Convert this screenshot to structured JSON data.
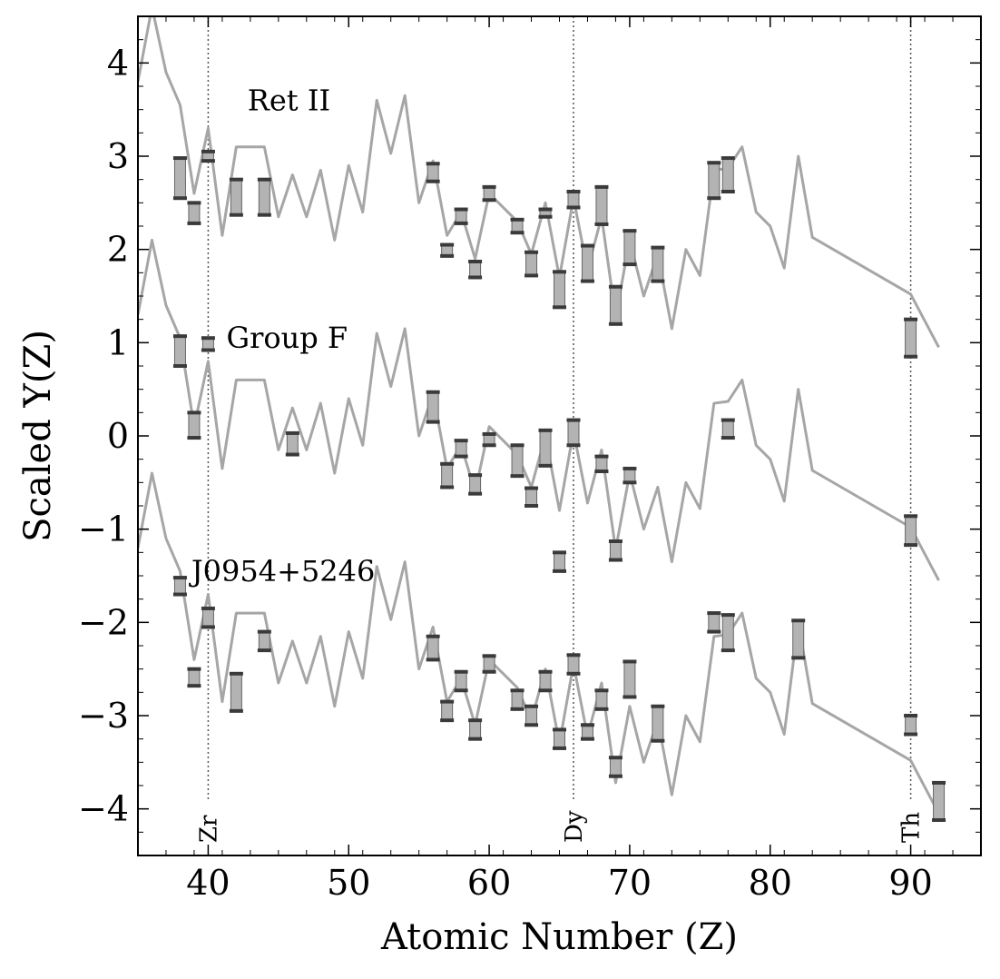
{
  "chart_data": {
    "type": "line",
    "xlabel": "Atomic Number (Z)",
    "ylabel": "Scaled Y(Z)",
    "xlim": [
      35,
      95
    ],
    "ylim": [
      -4.5,
      4.5
    ],
    "x_ticks": [
      40,
      50,
      60,
      70,
      80,
      90
    ],
    "y_ticks": [
      -4,
      -3,
      -2,
      -1,
      0,
      1,
      2,
      3,
      4
    ],
    "x_tick_labels": [
      "40",
      "50",
      "60",
      "70",
      "80",
      "90"
    ],
    "y_tick_labels": [
      "−4",
      "−3",
      "−2",
      "−1",
      "0",
      "1",
      "2",
      "3",
      "4"
    ],
    "grid": false,
    "line_color": "#a6a6a6",
    "bar_fill": "#b3b3b3",
    "bar_cap_color": "#3a3a3a",
    "vertical_lines": [
      {
        "x": 40,
        "label": "Zr"
      },
      {
        "x": 66,
        "label": "Dy"
      },
      {
        "x": 90,
        "label": "Th"
      }
    ],
    "model_curve": {
      "x": [
        35,
        36,
        37,
        38,
        39,
        40,
        41,
        42,
        44,
        45,
        46,
        47,
        48,
        49,
        50,
        51,
        52,
        53,
        54,
        55,
        56,
        57,
        58,
        59,
        60,
        62,
        63,
        64,
        65,
        66,
        67,
        68,
        69,
        70,
        71,
        72,
        73,
        74,
        75,
        76,
        77,
        78,
        79,
        80,
        81,
        82,
        83,
        90,
        92
      ],
      "y": [
        3.8,
        4.6,
        3.9,
        3.55,
        2.6,
        3.3,
        2.15,
        3.1,
        3.1,
        2.35,
        2.8,
        2.35,
        2.85,
        2.1,
        2.9,
        2.4,
        3.6,
        3.03,
        3.65,
        2.5,
        2.95,
        2.15,
        2.4,
        1.9,
        2.6,
        2.3,
        1.95,
        2.5,
        1.7,
        2.55,
        1.78,
        2.35,
        1.28,
        2.1,
        1.5,
        1.95,
        1.15,
        2.0,
        1.72,
        2.85,
        2.87,
        3.1,
        2.4,
        2.25,
        1.8,
        3.0,
        2.13,
        1.52,
        0.95
      ]
    },
    "series": [
      {
        "name": "Ret II",
        "offset": 0.0,
        "label_pos": [
          42.8,
          3.6
        ],
        "points": [
          {
            "z": 38,
            "lo": 2.55,
            "hi": 2.98
          },
          {
            "z": 39,
            "lo": 2.28,
            "hi": 2.5
          },
          {
            "z": 40,
            "lo": 2.95,
            "hi": 3.05
          },
          {
            "z": 42,
            "lo": 2.37,
            "hi": 2.75
          },
          {
            "z": 44,
            "lo": 2.37,
            "hi": 2.75
          },
          {
            "z": 56,
            "lo": 2.73,
            "hi": 2.92
          },
          {
            "z": 57,
            "lo": 1.93,
            "hi": 2.05
          },
          {
            "z": 58,
            "lo": 2.28,
            "hi": 2.43
          },
          {
            "z": 59,
            "lo": 1.7,
            "hi": 1.87
          },
          {
            "z": 60,
            "lo": 2.53,
            "hi": 2.67
          },
          {
            "z": 62,
            "lo": 2.18,
            "hi": 2.32
          },
          {
            "z": 63,
            "lo": 1.72,
            "hi": 1.97
          },
          {
            "z": 64,
            "lo": 2.35,
            "hi": 2.43
          },
          {
            "z": 65,
            "lo": 1.38,
            "hi": 1.76
          },
          {
            "z": 66,
            "lo": 2.45,
            "hi": 2.62
          },
          {
            "z": 67,
            "lo": 1.66,
            "hi": 2.04
          },
          {
            "z": 68,
            "lo": 2.27,
            "hi": 2.67
          },
          {
            "z": 69,
            "lo": 1.2,
            "hi": 1.6
          },
          {
            "z": 70,
            "lo": 1.84,
            "hi": 2.2
          },
          {
            "z": 72,
            "lo": 1.66,
            "hi": 2.02
          },
          {
            "z": 76,
            "lo": 2.55,
            "hi": 2.93
          },
          {
            "z": 77,
            "lo": 2.62,
            "hi": 2.98
          },
          {
            "z": 90,
            "lo": 0.85,
            "hi": 1.25
          }
        ]
      },
      {
        "name": "Group F",
        "offset": -2.5,
        "label_pos": [
          41.3,
          1.05
        ],
        "points": [
          {
            "z": 38,
            "lo": 0.75,
            "hi": 1.07
          },
          {
            "z": 39,
            "lo": -0.02,
            "hi": 0.25
          },
          {
            "z": 40,
            "lo": 0.92,
            "hi": 1.05
          },
          {
            "z": 46,
            "lo": -0.2,
            "hi": 0.03
          },
          {
            "z": 56,
            "lo": 0.15,
            "hi": 0.47
          },
          {
            "z": 57,
            "lo": -0.55,
            "hi": -0.3
          },
          {
            "z": 58,
            "lo": -0.22,
            "hi": -0.05
          },
          {
            "z": 59,
            "lo": -0.62,
            "hi": -0.42
          },
          {
            "z": 60,
            "lo": -0.1,
            "hi": 0.02
          },
          {
            "z": 62,
            "lo": -0.43,
            "hi": -0.1
          },
          {
            "z": 63,
            "lo": -0.75,
            "hi": -0.56
          },
          {
            "z": 64,
            "lo": -0.32,
            "hi": 0.06
          },
          {
            "z": 65,
            "lo": -1.45,
            "hi": -1.25
          },
          {
            "z": 66,
            "lo": -0.1,
            "hi": 0.17
          },
          {
            "z": 68,
            "lo": -0.38,
            "hi": -0.22
          },
          {
            "z": 69,
            "lo": -1.33,
            "hi": -1.13
          },
          {
            "z": 70,
            "lo": -0.5,
            "hi": -0.35
          },
          {
            "z": 77,
            "lo": -0.02,
            "hi": 0.17
          },
          {
            "z": 90,
            "lo": -1.17,
            "hi": -0.86
          }
        ]
      },
      {
        "name": "J0954+5246",
        "offset": -5.0,
        "label_pos": [
          38.8,
          -1.45
        ],
        "points": [
          {
            "z": 38,
            "lo": -1.7,
            "hi": -1.52
          },
          {
            "z": 39,
            "lo": -2.68,
            "hi": -2.5
          },
          {
            "z": 40,
            "lo": -2.05,
            "hi": -1.85
          },
          {
            "z": 42,
            "lo": -2.95,
            "hi": -2.55
          },
          {
            "z": 44,
            "lo": -2.3,
            "hi": -2.1
          },
          {
            "z": 56,
            "lo": -2.4,
            "hi": -2.15
          },
          {
            "z": 57,
            "lo": -3.05,
            "hi": -2.85
          },
          {
            "z": 58,
            "lo": -2.73,
            "hi": -2.53
          },
          {
            "z": 59,
            "lo": -3.25,
            "hi": -3.05
          },
          {
            "z": 60,
            "lo": -2.53,
            "hi": -2.36
          },
          {
            "z": 62,
            "lo": -2.93,
            "hi": -2.73
          },
          {
            "z": 63,
            "lo": -3.1,
            "hi": -2.9
          },
          {
            "z": 64,
            "lo": -2.73,
            "hi": -2.53
          },
          {
            "z": 65,
            "lo": -3.35,
            "hi": -3.15
          },
          {
            "z": 66,
            "lo": -2.55,
            "hi": -2.35
          },
          {
            "z": 67,
            "lo": -3.25,
            "hi": -3.1
          },
          {
            "z": 68,
            "lo": -2.93,
            "hi": -2.73
          },
          {
            "z": 69,
            "lo": -3.65,
            "hi": -3.45
          },
          {
            "z": 70,
            "lo": -2.8,
            "hi": -2.42
          },
          {
            "z": 72,
            "lo": -3.27,
            "hi": -2.9
          },
          {
            "z": 76,
            "lo": -2.1,
            "hi": -1.9
          },
          {
            "z": 77,
            "lo": -2.3,
            "hi": -1.92
          },
          {
            "z": 82,
            "lo": -2.38,
            "hi": -1.98
          },
          {
            "z": 90,
            "lo": -3.2,
            "hi": -3.0
          },
          {
            "z": 92,
            "lo": -4.12,
            "hi": -3.72
          }
        ]
      }
    ]
  }
}
